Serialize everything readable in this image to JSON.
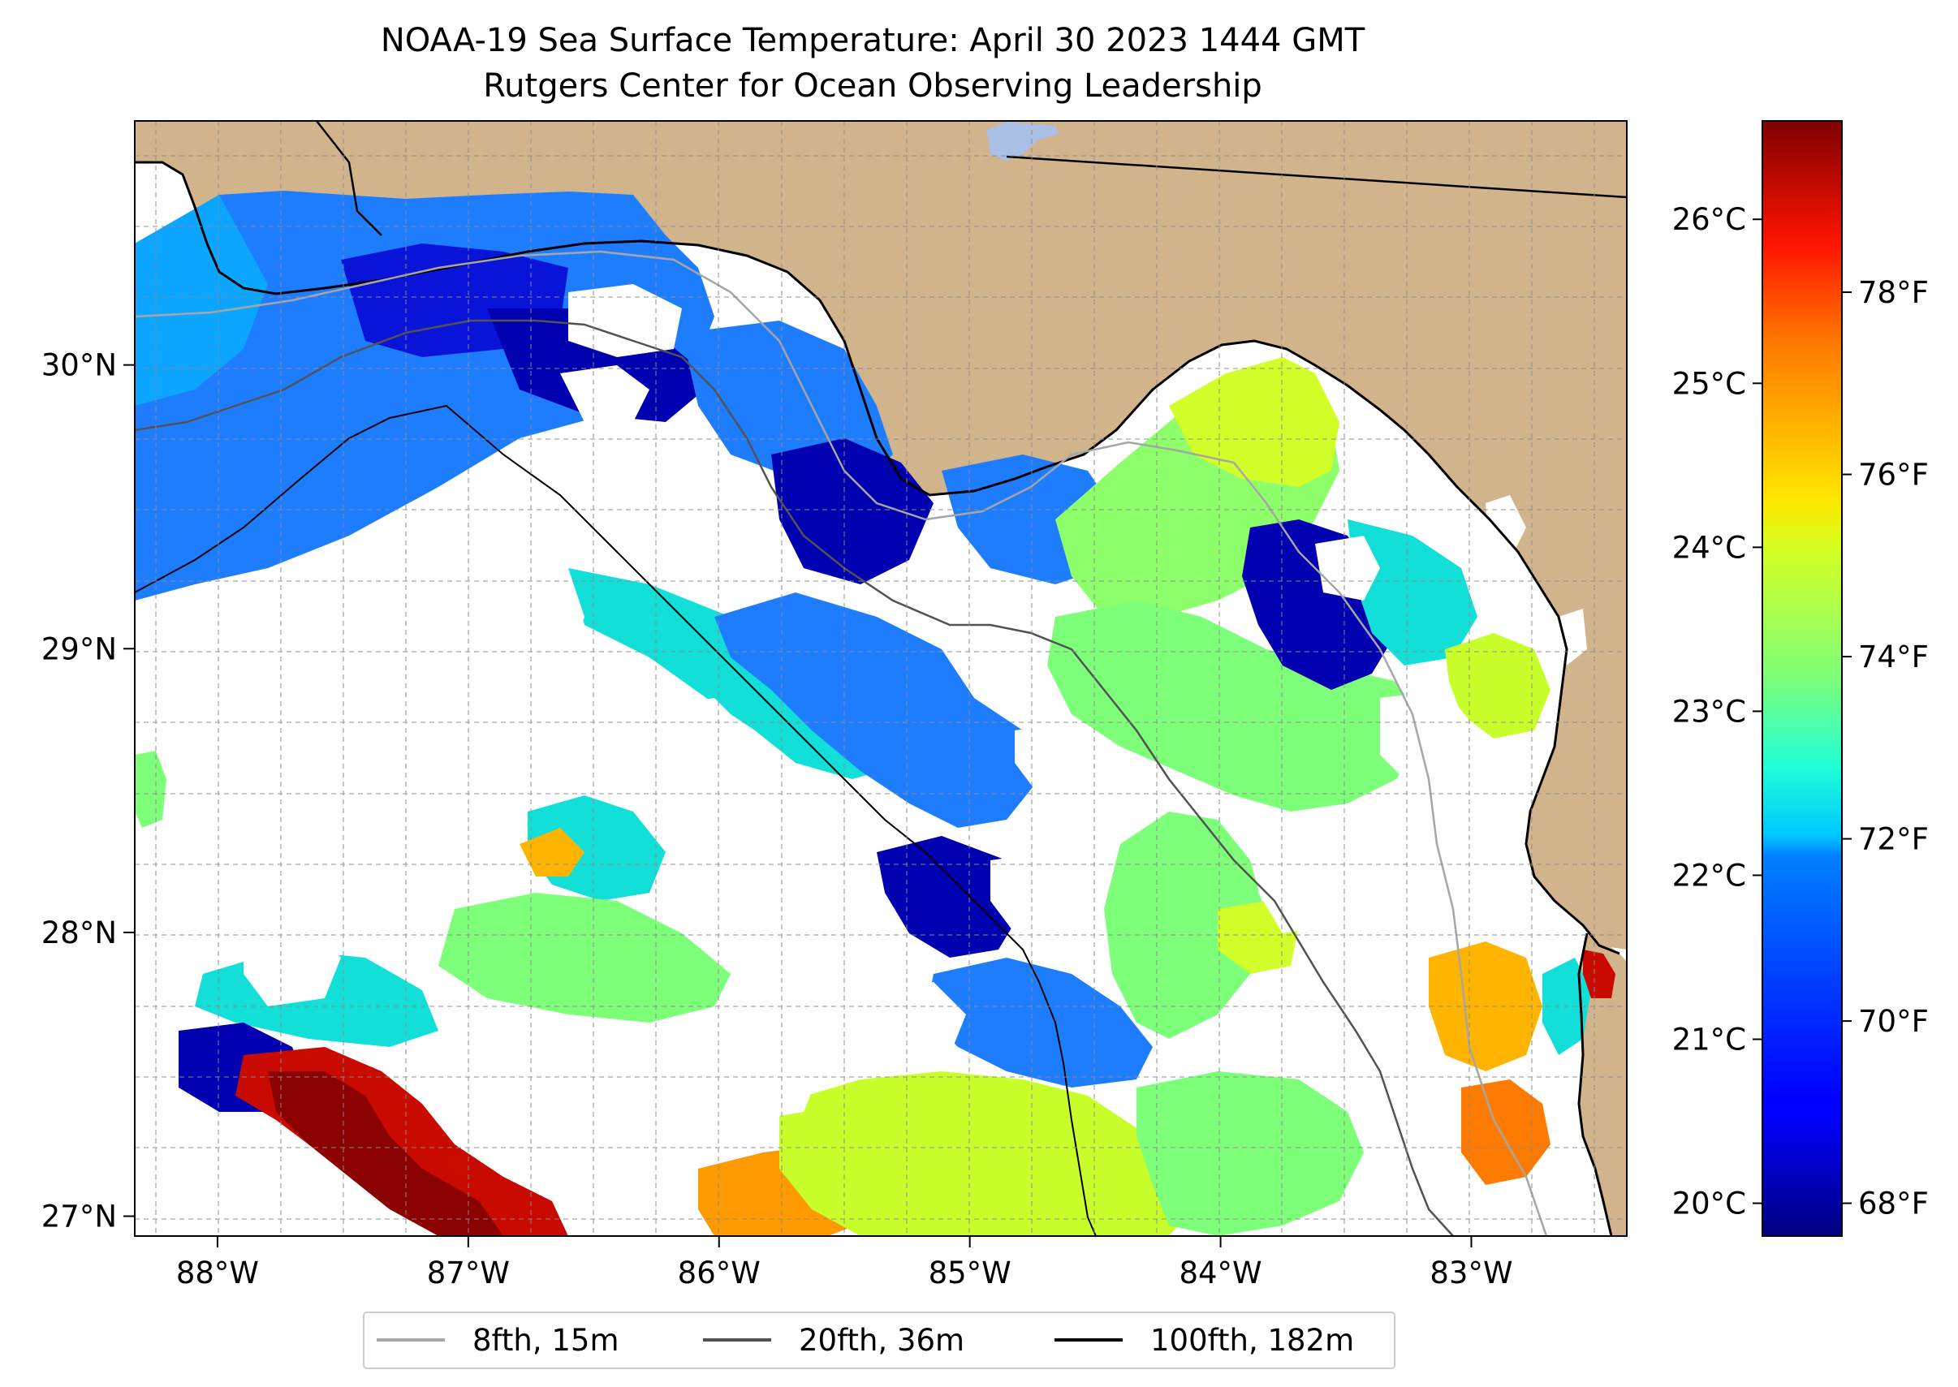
{
  "title": {
    "line1": "NOAA-19 Sea Surface Temperature: April 30 2023 1444 GMT",
    "line2": "Rutgers Center for Ocean Observing Leadership"
  },
  "map": {
    "lon_range": [
      -88.33,
      -82.38
    ],
    "lat_range": [
      26.93,
      30.86
    ],
    "land_color": "#D2B48C",
    "lon_ticks": [
      {
        "value": -88,
        "label": "88°W"
      },
      {
        "value": -87,
        "label": "87°W"
      },
      {
        "value": -86,
        "label": "86°W"
      },
      {
        "value": -85,
        "label": "85°W"
      },
      {
        "value": -84,
        "label": "84°W"
      },
      {
        "value": -83,
        "label": "83°W"
      }
    ],
    "lat_ticks": [
      {
        "value": 27,
        "label": "27°N"
      },
      {
        "value": 28,
        "label": "28°N"
      },
      {
        "value": 29,
        "label": "29°N"
      },
      {
        "value": 30,
        "label": "30°N"
      }
    ]
  },
  "colorbar": {
    "colormap": "jet",
    "min_c": 19.8,
    "max_c": 26.6,
    "celsius_ticks": [
      {
        "value": 20,
        "label": "20°C"
      },
      {
        "value": 21,
        "label": "21°C"
      },
      {
        "value": 22,
        "label": "22°C"
      },
      {
        "value": 23,
        "label": "23°C"
      },
      {
        "value": 24,
        "label": "24°C"
      },
      {
        "value": 25,
        "label": "25°C"
      },
      {
        "value": 26,
        "label": "26°C"
      }
    ],
    "fahrenheit_ticks": [
      {
        "value": 68,
        "label": "68°F"
      },
      {
        "value": 70,
        "label": "70°F"
      },
      {
        "value": 72,
        "label": "72°F"
      },
      {
        "value": 74,
        "label": "74°F"
      },
      {
        "value": 76,
        "label": "76°F"
      },
      {
        "value": 78,
        "label": "78°F"
      }
    ]
  },
  "legend": {
    "items": [
      {
        "label": "8fth, 15m",
        "color": "#a6a6a6"
      },
      {
        "label": "20fth, 36m",
        "color": "#525252"
      },
      {
        "label": "100fth, 182m",
        "color": "#000000"
      }
    ]
  }
}
